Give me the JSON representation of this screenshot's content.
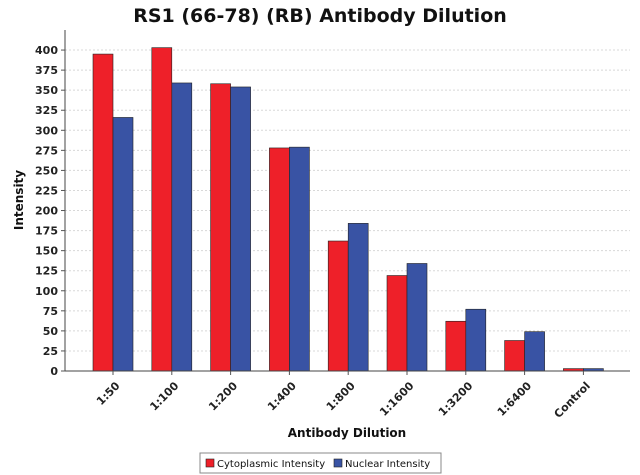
{
  "chart_data": {
    "type": "bar",
    "title": "RS1 (66-78) (RB) Antibody Dilution",
    "xlabel": "Antibody Dilution",
    "ylabel": "Intensity",
    "ylim": [
      0,
      425
    ],
    "y_ticks": [
      0,
      25,
      50,
      75,
      100,
      125,
      150,
      175,
      200,
      225,
      250,
      275,
      300,
      325,
      350,
      375,
      400
    ],
    "grid": true,
    "legend_position": "bottom",
    "categories": [
      "1:50",
      "1:100",
      "1:200",
      "1:400",
      "1:800",
      "1:1600",
      "1:3200",
      "1:6400",
      "Control"
    ],
    "series": [
      {
        "name": "Cytoplasmic Intensity",
        "color": "#ee2029",
        "values": [
          395,
          403,
          358,
          278,
          162,
          119,
          62,
          38,
          3
        ]
      },
      {
        "name": "Nuclear Intensity",
        "color": "#3953a4",
        "values": [
          316,
          359,
          354,
          279,
          184,
          134,
          77,
          49,
          3
        ]
      }
    ]
  }
}
